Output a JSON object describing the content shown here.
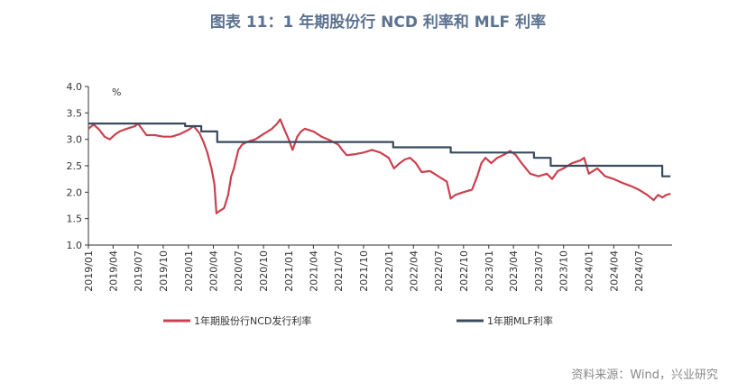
{
  "title": "图表 11：1 年期股份行 NCD 利率和 MLF 利率",
  "source": "资料来源：Wind，兴业研究",
  "colors": {
    "ncd": "#c9414f",
    "mlf": "#3a4a5c",
    "title": "#5b7290"
  },
  "chart_data": {
    "type": "line",
    "unit_label": "%",
    "ylim": [
      1.0,
      4.0
    ],
    "yticks": [
      "4.0",
      "3.5",
      "3.0",
      "2.5",
      "2.0",
      "1.5",
      "1.0"
    ],
    "xlim": [
      "2019-01-01",
      "2024-10-31"
    ],
    "xticks": [
      "2019/01",
      "2019/04",
      "2019/07",
      "2019/10",
      "2020/01",
      "2020/04",
      "2020/07",
      "2020/10",
      "2021/01",
      "2021/04",
      "2021/07",
      "2021/10",
      "2022/01",
      "2022/04",
      "2022/07",
      "2022/10",
      "2023/01",
      "2023/04",
      "2023/07",
      "2023/10",
      "2024/01",
      "2024/04",
      "2024/07"
    ],
    "legend": [
      "1年期股份行NCD发行利率",
      "1年期MLF利率"
    ],
    "series": [
      {
        "name": "1年期股份行NCD发行利率",
        "points": [
          [
            "2019-01-01",
            3.2
          ],
          [
            "2019-01-20",
            3.28
          ],
          [
            "2019-02-10",
            3.18
          ],
          [
            "2019-03-01",
            3.05
          ],
          [
            "2019-03-20",
            3.0
          ],
          [
            "2019-04-10",
            3.1
          ],
          [
            "2019-04-25",
            3.15
          ],
          [
            "2019-05-10",
            3.18
          ],
          [
            "2019-06-01",
            3.22
          ],
          [
            "2019-06-20",
            3.25
          ],
          [
            "2019-07-01",
            3.3
          ],
          [
            "2019-07-15",
            3.2
          ],
          [
            "2019-08-01",
            3.08
          ],
          [
            "2019-09-01",
            3.08
          ],
          [
            "2019-10-01",
            3.05
          ],
          [
            "2019-11-01",
            3.05
          ],
          [
            "2019-12-01",
            3.1
          ],
          [
            "2020-01-01",
            3.18
          ],
          [
            "2020-01-20",
            3.25
          ],
          [
            "2020-02-10",
            3.12
          ],
          [
            "2020-02-25",
            2.95
          ],
          [
            "2020-03-10",
            2.75
          ],
          [
            "2020-03-25",
            2.45
          ],
          [
            "2020-04-05",
            2.15
          ],
          [
            "2020-04-12",
            1.6
          ],
          [
            "2020-04-25",
            1.65
          ],
          [
            "2020-05-10",
            1.7
          ],
          [
            "2020-05-25",
            1.95
          ],
          [
            "2020-06-05",
            2.3
          ],
          [
            "2020-06-15",
            2.45
          ],
          [
            "2020-07-01",
            2.8
          ],
          [
            "2020-07-15",
            2.9
          ],
          [
            "2020-08-01",
            2.95
          ],
          [
            "2020-09-01",
            3.0
          ],
          [
            "2020-10-01",
            3.1
          ],
          [
            "2020-11-01",
            3.2
          ],
          [
            "2020-11-20",
            3.3
          ],
          [
            "2020-12-01",
            3.38
          ],
          [
            "2020-12-15",
            3.2
          ],
          [
            "2021-01-01",
            3.0
          ],
          [
            "2021-01-15",
            2.8
          ],
          [
            "2021-02-01",
            3.05
          ],
          [
            "2021-02-15",
            3.15
          ],
          [
            "2021-03-01",
            3.2
          ],
          [
            "2021-04-01",
            3.15
          ],
          [
            "2021-05-01",
            3.05
          ],
          [
            "2021-06-01",
            2.98
          ],
          [
            "2021-07-01",
            2.9
          ],
          [
            "2021-07-15",
            2.8
          ],
          [
            "2021-08-01",
            2.7
          ],
          [
            "2021-09-01",
            2.72
          ],
          [
            "2021-10-01",
            2.75
          ],
          [
            "2021-11-01",
            2.8
          ],
          [
            "2021-12-01",
            2.75
          ],
          [
            "2022-01-01",
            2.65
          ],
          [
            "2022-01-20",
            2.45
          ],
          [
            "2022-02-10",
            2.55
          ],
          [
            "2022-03-01",
            2.62
          ],
          [
            "2022-03-20",
            2.65
          ],
          [
            "2022-04-10",
            2.55
          ],
          [
            "2022-05-01",
            2.38
          ],
          [
            "2022-06-01",
            2.4
          ],
          [
            "2022-07-01",
            2.3
          ],
          [
            "2022-08-01",
            2.2
          ],
          [
            "2022-08-15",
            1.88
          ],
          [
            "2022-09-01",
            1.95
          ],
          [
            "2022-10-01",
            2.0
          ],
          [
            "2022-11-01",
            2.05
          ],
          [
            "2022-11-20",
            2.3
          ],
          [
            "2022-12-05",
            2.55
          ],
          [
            "2022-12-20",
            2.65
          ],
          [
            "2023-01-10",
            2.55
          ],
          [
            "2023-02-01",
            2.65
          ],
          [
            "2023-03-01",
            2.72
          ],
          [
            "2023-03-20",
            2.78
          ],
          [
            "2023-04-10",
            2.7
          ],
          [
            "2023-05-01",
            2.55
          ],
          [
            "2023-06-01",
            2.35
          ],
          [
            "2023-07-01",
            2.3
          ],
          [
            "2023-08-01",
            2.35
          ],
          [
            "2023-08-20",
            2.25
          ],
          [
            "2023-09-10",
            2.4
          ],
          [
            "2023-10-01",
            2.45
          ],
          [
            "2023-11-01",
            2.55
          ],
          [
            "2023-12-01",
            2.6
          ],
          [
            "2023-12-15",
            2.65
          ],
          [
            "2024-01-01",
            2.35
          ],
          [
            "2024-02-01",
            2.45
          ],
          [
            "2024-03-01",
            2.3
          ],
          [
            "2024-04-01",
            2.25
          ],
          [
            "2024-05-01",
            2.18
          ],
          [
            "2024-06-01",
            2.12
          ],
          [
            "2024-07-01",
            2.05
          ],
          [
            "2024-08-01",
            1.95
          ],
          [
            "2024-08-25",
            1.85
          ],
          [
            "2024-09-10",
            1.95
          ],
          [
            "2024-09-25",
            1.9
          ],
          [
            "2024-10-10",
            1.95
          ],
          [
            "2024-10-25",
            1.97
          ]
        ]
      },
      {
        "name": "1年期MLF利率",
        "points": [
          [
            "2019-01-01",
            3.3
          ],
          [
            "2019-12-20",
            3.3
          ],
          [
            "2019-12-20",
            3.25
          ],
          [
            "2020-02-17",
            3.25
          ],
          [
            "2020-02-17",
            3.15
          ],
          [
            "2020-04-15",
            3.15
          ],
          [
            "2020-04-15",
            2.95
          ],
          [
            "2022-01-17",
            2.95
          ],
          [
            "2022-01-17",
            2.85
          ],
          [
            "2022-08-15",
            2.85
          ],
          [
            "2022-08-15",
            2.75
          ],
          [
            "2023-06-15",
            2.75
          ],
          [
            "2023-06-15",
            2.65
          ],
          [
            "2023-08-15",
            2.65
          ],
          [
            "2023-08-15",
            2.5
          ],
          [
            "2024-09-25",
            2.5
          ],
          [
            "2024-09-25",
            2.3
          ],
          [
            "2024-10-25",
            2.3
          ]
        ]
      }
    ]
  }
}
